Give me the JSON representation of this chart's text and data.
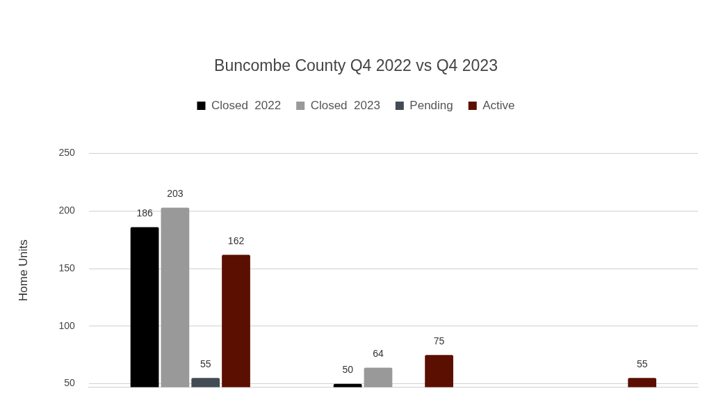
{
  "chart_data": {
    "type": "bar",
    "title": "Buncombe County Q4 2022 vs Q4 2023",
    "ylabel": "Home Units",
    "categories": [
      null,
      null,
      null
    ],
    "series": [
      {
        "name": "Closed  2022",
        "color": "#000000",
        "values": [
          186,
          50,
          null
        ]
      },
      {
        "name": "Closed  2023",
        "color": "#999999",
        "values": [
          203,
          64,
          null
        ]
      },
      {
        "name": "Pending",
        "color": "#434c54",
        "values": [
          55,
          null,
          null
        ]
      },
      {
        "name": "Active",
        "color": "#5b0f00",
        "values": [
          162,
          75,
          55
        ]
      }
    ],
    "ylim": [
      47,
      250
    ],
    "yticks": [
      50,
      100,
      150,
      200,
      250
    ],
    "grid": "y",
    "legend": "top",
    "tick_labels": "y",
    "data_labels": true
  }
}
